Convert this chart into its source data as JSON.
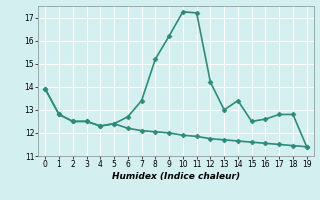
{
  "x": [
    0,
    1,
    2,
    3,
    4,
    5,
    6,
    7,
    8,
    9,
    10,
    11,
    12,
    13,
    14,
    15,
    16,
    17,
    18,
    19
  ],
  "y_upper": [
    13.9,
    12.8,
    12.5,
    12.5,
    12.3,
    12.4,
    12.7,
    13.4,
    15.2,
    16.2,
    17.25,
    17.2,
    14.2,
    13.0,
    13.4,
    12.5,
    12.6,
    12.8,
    12.8,
    11.4
  ],
  "y_lower": [
    13.9,
    12.8,
    12.5,
    12.5,
    12.3,
    12.4,
    12.2,
    12.1,
    12.05,
    12.0,
    11.9,
    11.85,
    11.75,
    11.7,
    11.65,
    11.6,
    11.55,
    11.5,
    11.45,
    11.4
  ],
  "line_color": "#2e8b7a",
  "bg_color": "#d4efef",
  "grid_color": "#ffffff",
  "xlabel": "Humidex (Indice chaleur)",
  "ylim": [
    11,
    17.5
  ],
  "xlim": [
    -0.5,
    19.5
  ],
  "yticks": [
    11,
    12,
    13,
    14,
    15,
    16,
    17
  ],
  "xticks": [
    0,
    1,
    2,
    3,
    4,
    5,
    6,
    7,
    8,
    9,
    10,
    11,
    12,
    13,
    14,
    15,
    16,
    17,
    18,
    19
  ],
  "marker": "D",
  "markersize": 2.5,
  "linewidth": 1.2
}
